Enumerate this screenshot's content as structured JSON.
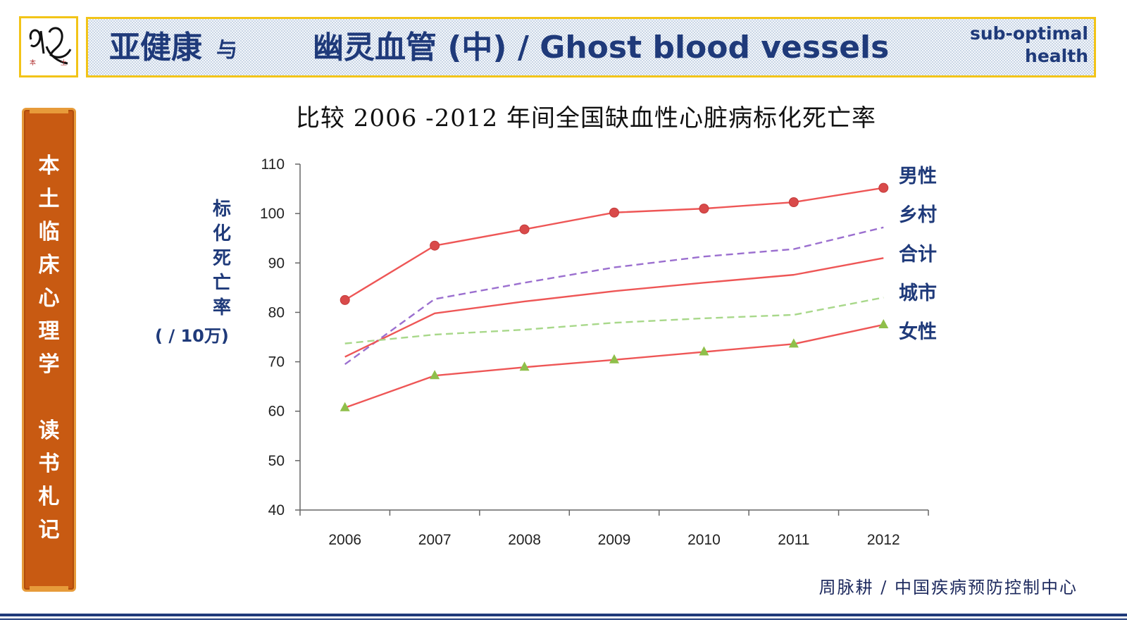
{
  "header": {
    "title_cn": "亚健康",
    "title_yu": "与",
    "title_ghost": "幽灵血管 (中) / Ghost blood vessels",
    "tag_line1": "sub-optimal",
    "tag_line2": "health",
    "logo_left": "本",
    "logo_right": "土"
  },
  "sidebar": {
    "chars_top": [
      "本",
      "土",
      "临",
      "床",
      "心",
      "理",
      "学"
    ],
    "chars_bottom": [
      "读",
      "书",
      "札",
      "记"
    ]
  },
  "source": "周脉耕 / 中国疾病预防控制中心",
  "colors": {
    "navy": "#1f3a7a",
    "gold": "#f2c418",
    "banner": "#c85a12",
    "red": "#ee5656",
    "purple": "#9b6fcf",
    "green": "#a8d88a",
    "marker_red": "#d94a4a",
    "marker_green": "#8fbf4a"
  },
  "chart_data": {
    "type": "line",
    "title": "比较 2006 -2012 年间全国缺血性心脏病标化死亡率",
    "ylabel_chars": [
      "标",
      "化",
      "死",
      "亡",
      "率"
    ],
    "yunit": "( / 10万)",
    "xlabel": "",
    "categories": [
      "2006",
      "2007",
      "2008",
      "2009",
      "2010",
      "2011",
      "2012"
    ],
    "ylim": [
      40,
      110
    ],
    "yticks": [
      40,
      50,
      60,
      70,
      80,
      90,
      100,
      110
    ],
    "grid": false,
    "series": [
      {
        "name": "男性",
        "values": [
          82.5,
          93.5,
          96.8,
          100.2,
          101.0,
          102.3,
          105.2
        ],
        "style": "solid",
        "color": "#ee5656",
        "marker": "circle"
      },
      {
        "name": "乡村",
        "values": [
          69.5,
          82.7,
          86.0,
          89.1,
          91.3,
          92.8,
          97.2
        ],
        "style": "dashed",
        "color": "#9b6fcf",
        "marker": "none"
      },
      {
        "name": "合计",
        "values": [
          71.0,
          79.8,
          82.2,
          84.3,
          86.0,
          87.6,
          91.0
        ],
        "style": "solid",
        "color": "#ee5656",
        "marker": "none"
      },
      {
        "name": "城市",
        "values": [
          73.7,
          75.5,
          76.5,
          77.9,
          78.8,
          79.5,
          83.0
        ],
        "style": "dashed",
        "color": "#a8d88a",
        "marker": "none"
      },
      {
        "name": "女性",
        "values": [
          60.7,
          67.2,
          68.9,
          70.4,
          72.0,
          73.6,
          77.5
        ],
        "style": "solid",
        "color": "#ee5656",
        "marker": "triangle"
      }
    ],
    "legend_order": [
      "男性",
      "乡村",
      "合计",
      "城市",
      "女性"
    ]
  }
}
